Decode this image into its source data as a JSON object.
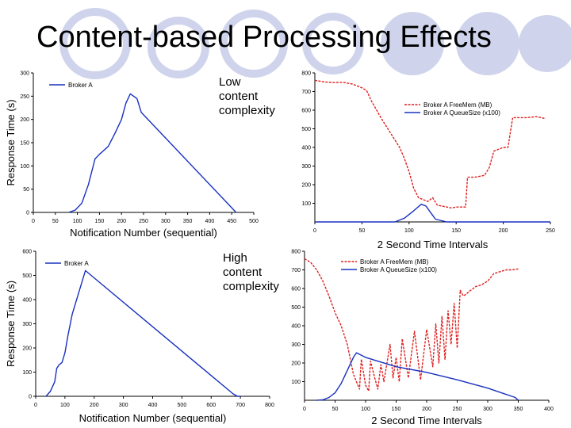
{
  "slide": {
    "title": "Content-based Processing Effects",
    "note_low": [
      "Low",
      "content",
      "complexity"
    ],
    "note_high": [
      "High",
      "content",
      "complexity"
    ]
  },
  "colors": {
    "red": "#e02020",
    "blue": "#1830c0",
    "deco": "#cfd4ec"
  },
  "chart_data": [
    {
      "id": "c1",
      "type": "line",
      "xlabel": "Notification Number (sequential)",
      "ylabel": "Response Time (s)",
      "xlim": [
        0,
        500
      ],
      "ylim": [
        0,
        300
      ],
      "xticks": [
        0,
        50,
        100,
        150,
        200,
        250,
        300,
        350,
        400,
        450,
        500
      ],
      "yticks": [
        0,
        50,
        100,
        150,
        200,
        250,
        300
      ],
      "legend": "top-left",
      "series": [
        {
          "name": "Broker A",
          "color": "#1830c0",
          "x": [
            80,
            95,
            110,
            125,
            140,
            150,
            170,
            185,
            200,
            210,
            220,
            235,
            245,
            455,
            460
          ],
          "y": [
            0,
            5,
            20,
            60,
            115,
            125,
            142,
            170,
            200,
            235,
            255,
            245,
            215,
            5,
            0
          ]
        }
      ]
    },
    {
      "id": "c2",
      "type": "line",
      "xlabel": "2 Second Time Intervals",
      "ylabel": "",
      "xlim": [
        0,
        250
      ],
      "ylim": [
        0,
        800
      ],
      "xticks": [
        0,
        50,
        100,
        150,
        200,
        250
      ],
      "yticks": [
        100,
        200,
        300,
        400,
        500,
        600,
        700,
        800
      ],
      "legend": "top-right",
      "series": [
        {
          "name": "Broker A FreeMem (MB)",
          "color": "#e02020",
          "dashed": true,
          "x": [
            0,
            10,
            20,
            30,
            40,
            50,
            55,
            60,
            70,
            80,
            90,
            95,
            100,
            105,
            110,
            115,
            120,
            125,
            130,
            135,
            140,
            145,
            150,
            160,
            162,
            170,
            180,
            185,
            190,
            200,
            205,
            210,
            220,
            225,
            235,
            245
          ],
          "y": [
            760,
            752,
            748,
            750,
            740,
            720,
            705,
            650,
            560,
            480,
            400,
            340,
            270,
            180,
            130,
            120,
            110,
            130,
            90,
            85,
            80,
            75,
            80,
            80,
            240,
            240,
            250,
            290,
            380,
            400,
            400,
            560,
            560,
            560,
            565,
            555
          ]
        },
        {
          "name": "Broker A QueueSize (x100)",
          "color": "#1830c0",
          "x": [
            0,
            85,
            95,
            105,
            113,
            118,
            123,
            128,
            140,
            250
          ],
          "y": [
            0,
            0,
            20,
            60,
            95,
            85,
            50,
            15,
            0,
            0
          ]
        }
      ]
    },
    {
      "id": "c3",
      "type": "line",
      "xlabel": "Notification Number (sequential)",
      "ylabel": "Response Time (s)",
      "xlim": [
        0,
        800
      ],
      "ylim": [
        0,
        600
      ],
      "xticks": [
        0,
        100,
        200,
        300,
        400,
        500,
        600,
        700,
        800
      ],
      "yticks": [
        0,
        100,
        200,
        300,
        400,
        500,
        600
      ],
      "legend": "top-left",
      "series": [
        {
          "name": "Broker A",
          "color": "#1830c0",
          "x": [
            35,
            50,
            65,
            72,
            80,
            90,
            100,
            110,
            125,
            150,
            170,
            675,
            690,
            700
          ],
          "y": [
            0,
            20,
            60,
            115,
            130,
            140,
            180,
            250,
            340,
            440,
            520,
            10,
            0,
            0
          ]
        }
      ]
    },
    {
      "id": "c4",
      "type": "line",
      "xlabel": "2 Second Time Intervals",
      "ylabel": "",
      "xlim": [
        0,
        400
      ],
      "ylim": [
        0,
        800
      ],
      "xticks": [
        0,
        50,
        100,
        150,
        200,
        250,
        300,
        350,
        400
      ],
      "yticks": [
        100,
        200,
        300,
        400,
        500,
        600,
        700,
        800
      ],
      "legend": "top-right",
      "series": [
        {
          "name": "Broker A FreeMem (MB)",
          "color": "#e02020",
          "dashed": true,
          "x": [
            0,
            10,
            20,
            30,
            40,
            50,
            60,
            70,
            80,
            90,
            93,
            100,
            105,
            108,
            115,
            120,
            125,
            130,
            140,
            145,
            150,
            155,
            160,
            170,
            180,
            190,
            200,
            210,
            215,
            220,
            225,
            230,
            235,
            240,
            245,
            250,
            255,
            260,
            265,
            270,
            280,
            290,
            300,
            310,
            320,
            330,
            340,
            350
          ],
          "y": [
            760,
            740,
            700,
            640,
            560,
            470,
            400,
            300,
            140,
            60,
            220,
            80,
            50,
            210,
            120,
            60,
            190,
            100,
            300,
            120,
            230,
            100,
            330,
            120,
            370,
            110,
            380,
            180,
            410,
            200,
            450,
            220,
            480,
            300,
            520,
            280,
            590,
            560,
            570,
            585,
            610,
            620,
            640,
            680,
            690,
            700,
            700,
            705
          ]
        },
        {
          "name": "Broker A QueueSize (x100)",
          "color": "#1830c0",
          "x": [
            20,
            30,
            40,
            50,
            60,
            70,
            80,
            85,
            100,
            150,
            200,
            250,
            300,
            345,
            350
          ],
          "y": [
            0,
            2,
            15,
            40,
            90,
            160,
            230,
            255,
            230,
            180,
            150,
            110,
            65,
            15,
            0
          ]
        }
      ]
    }
  ]
}
